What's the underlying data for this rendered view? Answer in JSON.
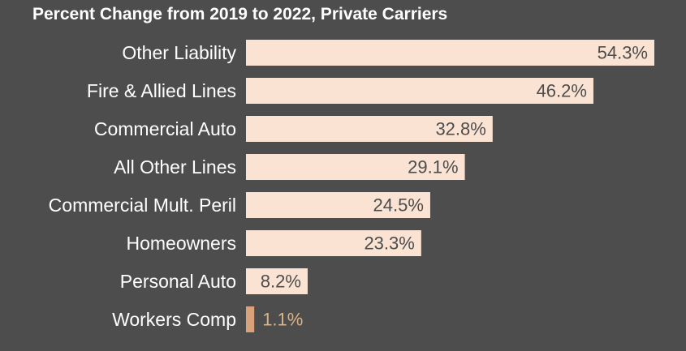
{
  "chart_data": {
    "type": "bar",
    "orientation": "horizontal",
    "title": "Percent Change from 2019 to 2022, Private Carriers",
    "categories": [
      "Other Liability",
      "Fire & Allied Lines",
      "Commercial Auto",
      "All Other Lines",
      "Commercial Mult. Peril",
      "Homeowners",
      "Personal Auto",
      "Workers Comp"
    ],
    "values": [
      54.3,
      46.2,
      32.8,
      29.1,
      24.5,
      23.3,
      8.2,
      1.1
    ],
    "value_labels": [
      "54.3%",
      "46.2%",
      "32.8%",
      "29.1%",
      "24.5%",
      "23.3%",
      "8.2%",
      "1.1%"
    ],
    "xlim": [
      0,
      54.3
    ],
    "grid": false,
    "legend": "none",
    "colors": {
      "background": "#4d4d4d",
      "bar": "#fbe3d3",
      "bar_highlight": "#d9a27a",
      "category_text": "#ffffff",
      "value_text": "#4d4d4d",
      "value_text_outside": "#d9b48a"
    }
  }
}
